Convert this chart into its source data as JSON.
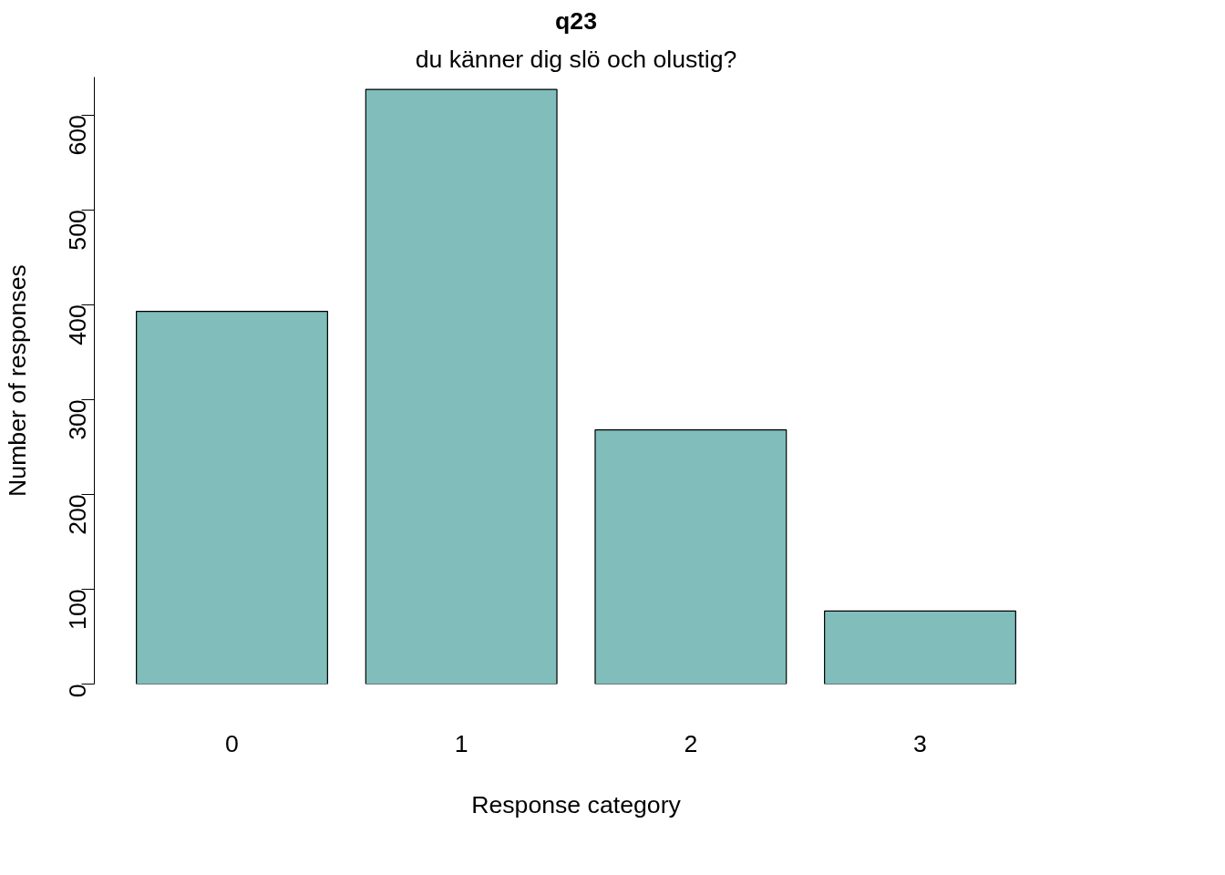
{
  "chart_data": {
    "type": "bar",
    "title": "q23",
    "subtitle": "du känner dig slö och olustig?",
    "xlabel": "Response category",
    "ylabel": "Number of responses",
    "categories": [
      "0",
      "1",
      "2",
      "3"
    ],
    "values": [
      393,
      627,
      268,
      77
    ],
    "color": "#80bdbb",
    "ylim": [
      0,
      640
    ],
    "yticks": [
      0,
      100,
      200,
      300,
      400,
      500,
      600
    ],
    "grid": false
  }
}
